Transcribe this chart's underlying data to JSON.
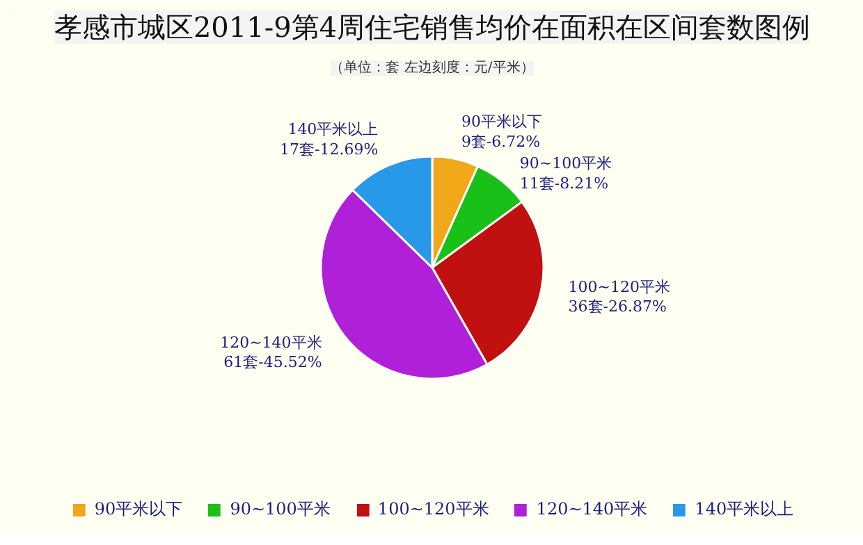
{
  "chart_data": {
    "type": "pie",
    "title": "孝感市城区2011-9第4周住宅销售均价在面积在区间套数图例",
    "subtitle": "（单位：套 左边刻度：元/平米）",
    "categories": [
      "90平米以下",
      "90~100平米",
      "100~120平米",
      "120~140平米",
      "140平米以上"
    ],
    "values": [
      9,
      11,
      36,
      61,
      17
    ],
    "value_labels": [
      "9套-6.72%",
      "11套-8.21%",
      "36套-26.87%",
      "61套-45.52%",
      "17套-12.69%"
    ],
    "colors": [
      "#f0a818",
      "#18c018",
      "#c01010",
      "#b020d8",
      "#2898e8"
    ],
    "legend": "bottom"
  }
}
